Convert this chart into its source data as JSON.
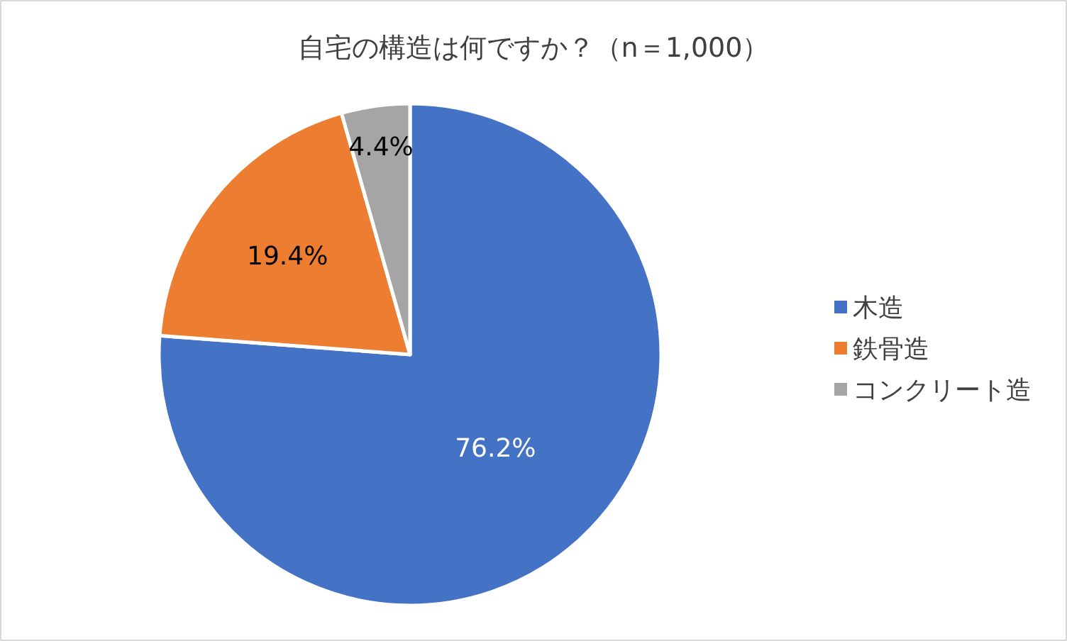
{
  "chart_data": {
    "type": "pie",
    "title": "自宅の構造は何ですか？（n＝1,000）",
    "categories": [
      "木造",
      "鉄骨造",
      "コンクリート造"
    ],
    "values": [
      76.2,
      19.4,
      4.4
    ],
    "colors": [
      "#4472c4",
      "#ed7d31",
      "#a5a5a5"
    ],
    "value_labels": [
      "76.2%",
      "19.4%",
      "4.4%"
    ],
    "legend": "right"
  }
}
